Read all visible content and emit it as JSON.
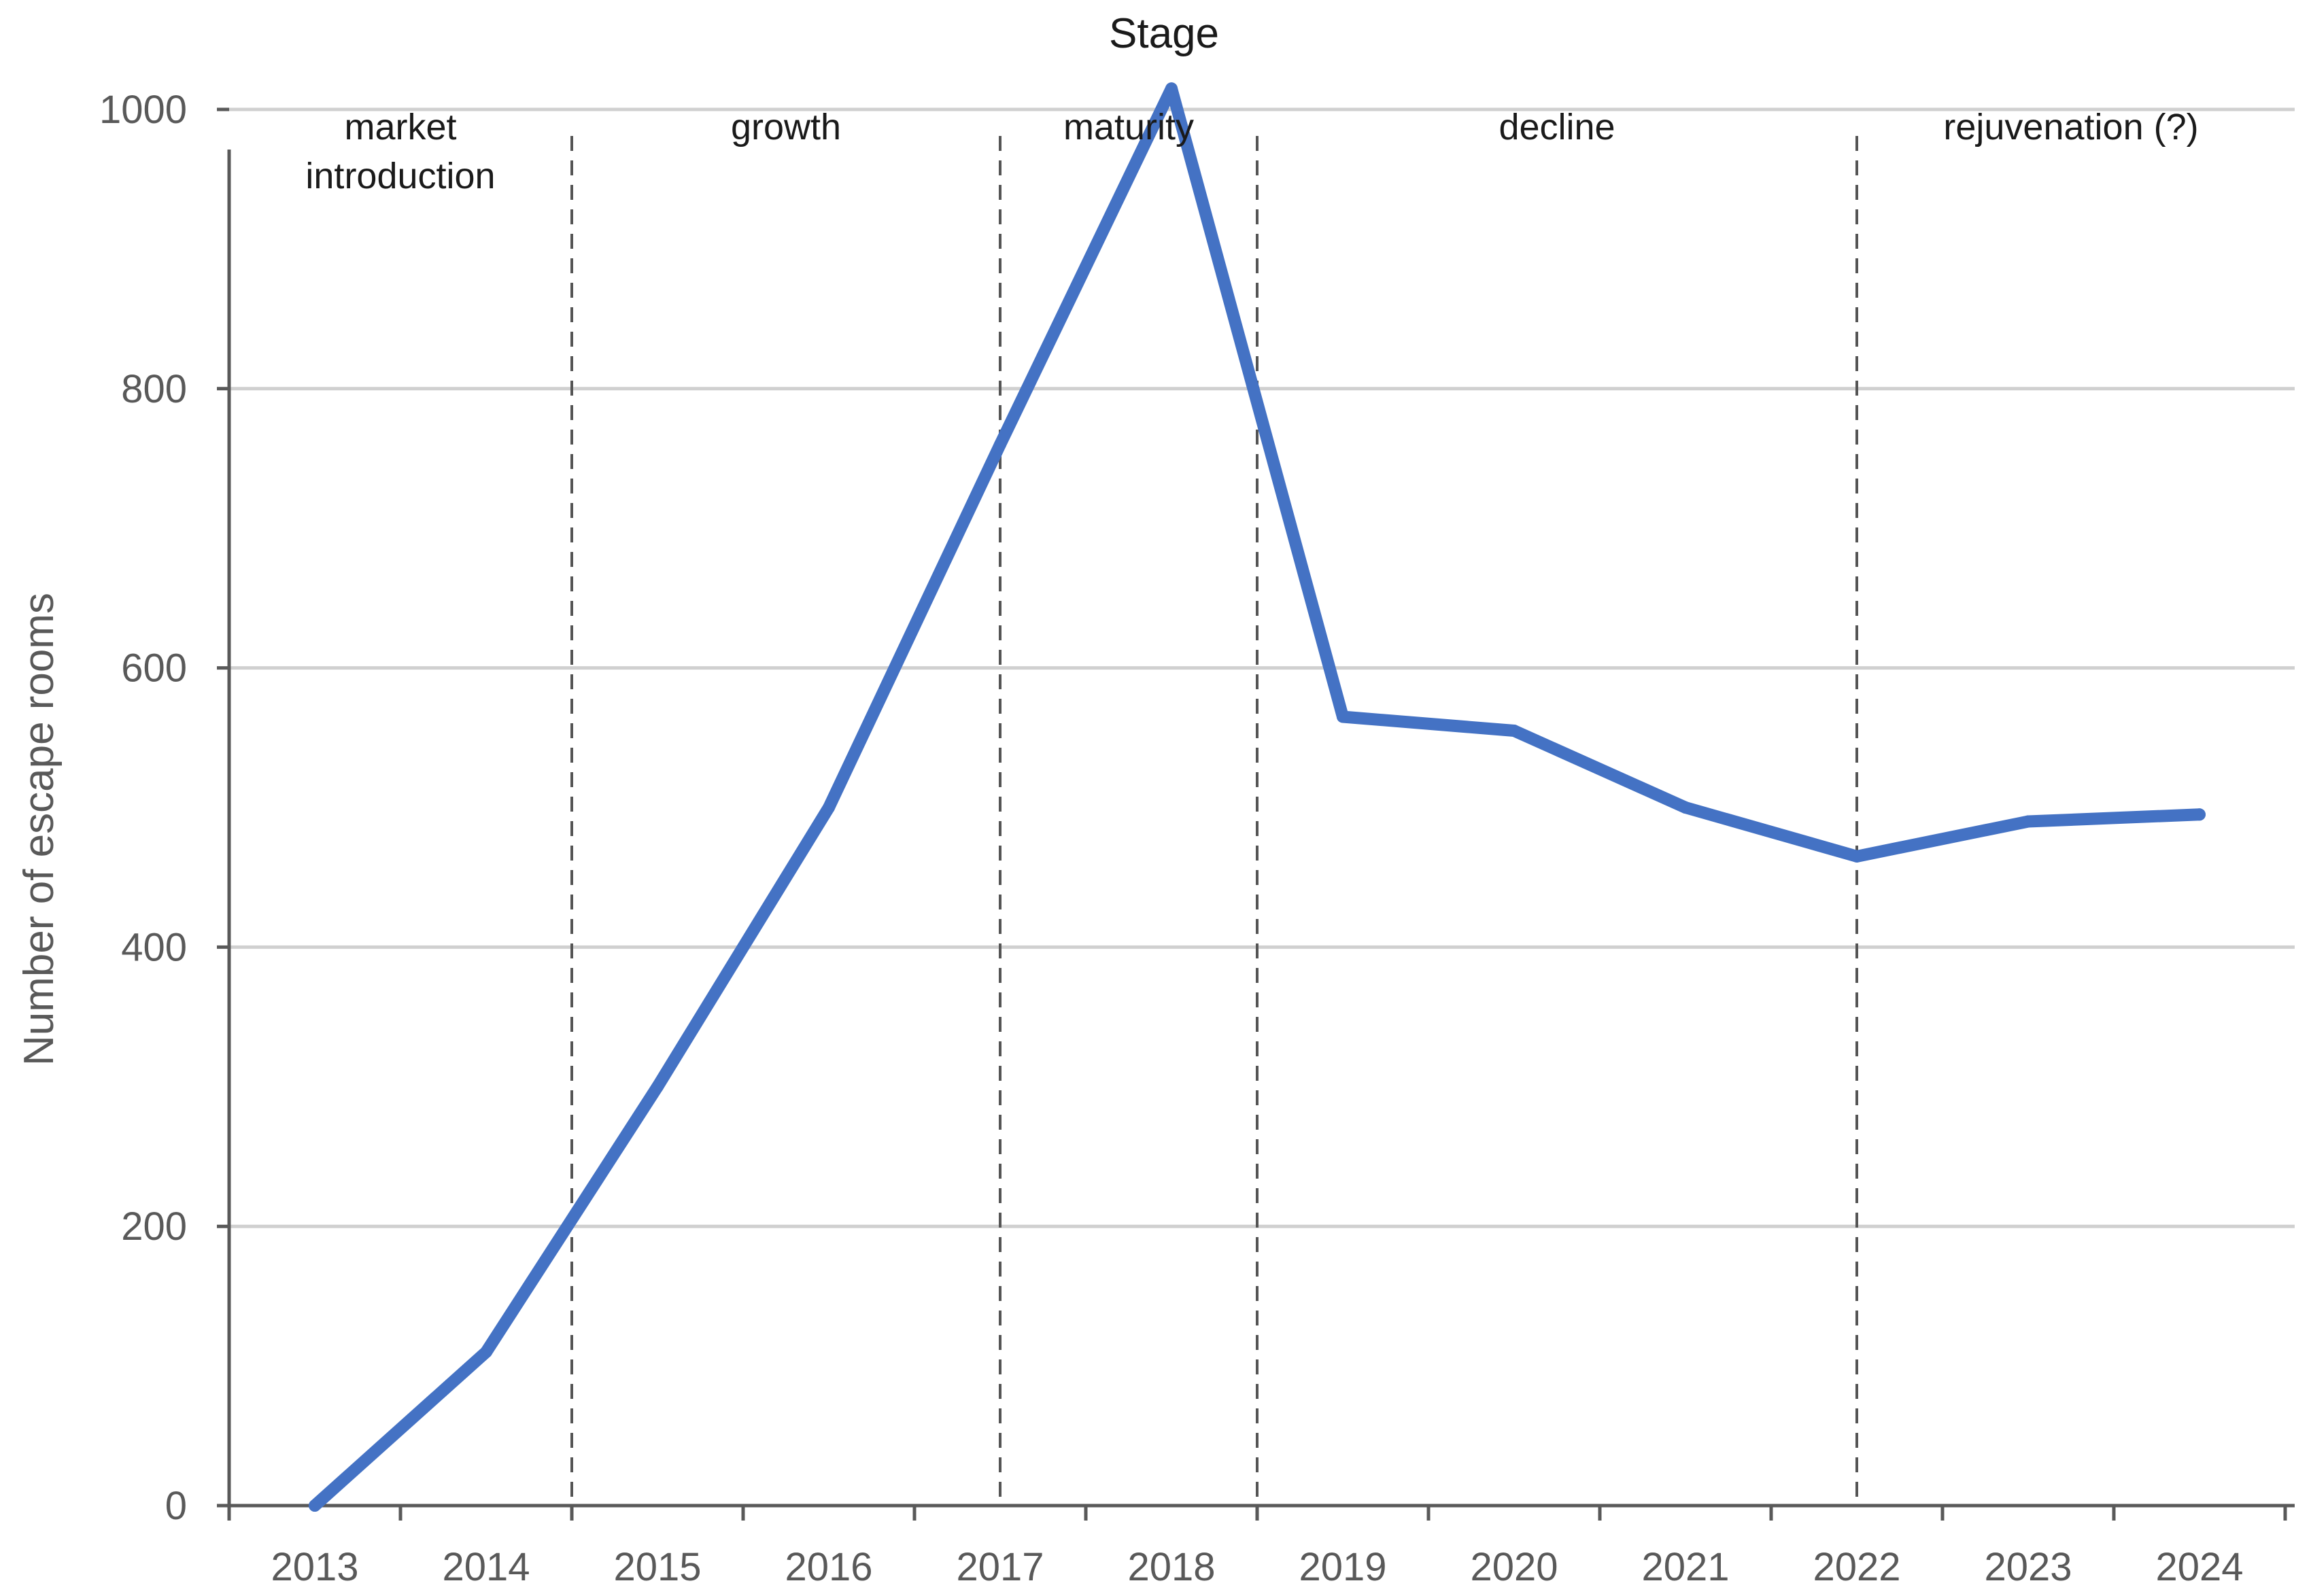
{
  "chart_data": {
    "type": "line",
    "title": "Stage",
    "xlabel": "",
    "ylabel": "Number of escape rooms",
    "ylim": [
      0,
      1000
    ],
    "yticks": [
      0,
      200,
      400,
      600,
      800,
      1000
    ],
    "grid": true,
    "categories": [
      "2013",
      "2014",
      "2015",
      "2016",
      "2017",
      "2018",
      "2019",
      "2020",
      "2021",
      "2022",
      "2023",
      "2024"
    ],
    "series": [
      {
        "values": [
          0,
          110,
          300,
          500,
          760,
          1015,
          565,
          555,
          500,
          465,
          490,
          495
        ]
      }
    ],
    "stages": [
      {
        "label": [
          "market",
          "introduction"
        ]
      },
      {
        "label": [
          "growth"
        ]
      },
      {
        "label": [
          "maturity"
        ]
      },
      {
        "label": [
          "decline"
        ]
      },
      {
        "label": [
          "rejuvenation (?)"
        ]
      }
    ],
    "stage_boundaries": [
      2014.5,
      2017,
      2018.5,
      2022
    ],
    "colors": {
      "series": "#4472C4",
      "grid": "#d0d0d0",
      "axis": "#595959"
    }
  }
}
